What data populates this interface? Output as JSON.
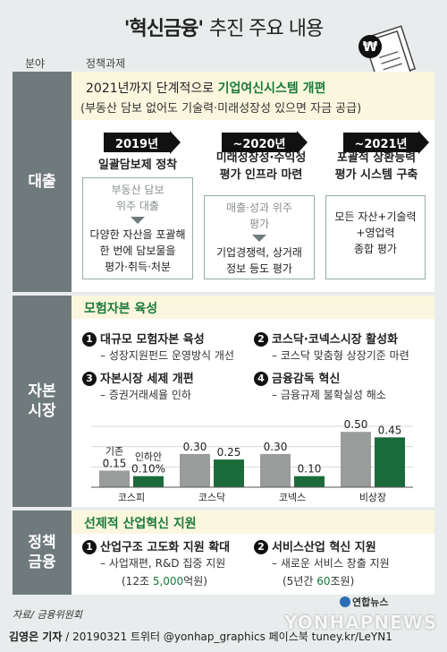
{
  "title": {
    "quoted": "'혁신금융'",
    "rest": "추진 주요 내용"
  },
  "columns": {
    "area": "분야",
    "task": "정책과제"
  },
  "section1": {
    "label": "대출",
    "line1_pre": "2021년까지 단계적으로 ",
    "line1_hl": "기업여신시스템 개편",
    "line2": "(부동산 담보 없어도 기술력·미래성장성 있으면 자금 공급)",
    "stages": [
      {
        "year": "2019년",
        "title": [
          "일괄담보제 정착"
        ],
        "before": [
          "부동산 담보",
          "위주 대출"
        ],
        "after": [
          "다양한 자산을 포괄해",
          "한 번에 담보물을",
          "평가·취득·처분"
        ]
      },
      {
        "year": "~2020년",
        "title": [
          "미래성장성·수익성",
          "평가 인프라 마련"
        ],
        "before": [
          "매출·성과 위주",
          "평가"
        ],
        "after": [
          "기업경쟁력, 상거래",
          "정보 등도 평가"
        ]
      },
      {
        "year": "~2021년",
        "title": [
          "포괄적 상환능력",
          "평가 시스템 구축"
        ],
        "before": [],
        "after": [
          "모든 자산+기술력",
          "+영업력",
          "종합 평가"
        ]
      }
    ]
  },
  "section2": {
    "label": [
      "자본",
      "시장"
    ],
    "heading": "모험자본 육성",
    "items": [
      {
        "num": "1",
        "title": "대규모 모험자본 육성",
        "sub": "– 성장지원펀드 운영방식 개선"
      },
      {
        "num": "2",
        "title": "코스닥·코넥스시장 활성화",
        "sub": "– 코스닥 맞춤형 상장기준 마련"
      },
      {
        "num": "3",
        "title": "자본시장 세제 개편",
        "sub": "– 증권거래세율 인하"
      },
      {
        "num": "4",
        "title": "금융감독 혁신",
        "sub": "– 금융규제 불확실성 해소"
      }
    ]
  },
  "chart_data": {
    "type": "bar",
    "categories": [
      "코스피",
      "코스닥",
      "코넥스",
      "비상장"
    ],
    "series": [
      {
        "name": "기존",
        "values": [
          0.15,
          0.3,
          0.3,
          0.5
        ],
        "labels": [
          "0.15",
          "0.30",
          "0.30",
          "0.50"
        ],
        "color": "#9a9c9c"
      },
      {
        "name": "인하안",
        "values": [
          0.1,
          0.25,
          0.1,
          0.45
        ],
        "labels": [
          "0.10%",
          "0.25",
          "0.10",
          "0.45"
        ],
        "color": "#1b6b3a"
      }
    ],
    "ylim": [
      0,
      0.55
    ]
  },
  "section3": {
    "label": [
      "정책",
      "금융"
    ],
    "heading": "선제적 산업혁신 지원",
    "items": [
      {
        "num": "1",
        "title": "산업구조 고도화 지원 확대",
        "sub": "– 사업재편, R&D 집중 지원",
        "note_pre": "(12조 ",
        "note_hl": "5,000",
        "note_post": "억원)"
      },
      {
        "num": "2",
        "title": "서비스산업 혁신 지원",
        "sub": "– 새로운 서비스 창출 지원",
        "note_pre": "(5년간 ",
        "note_hl": "60",
        "note_post": "조원)"
      }
    ]
  },
  "footer": {
    "source": "자료/ 금융위원회",
    "author": "김영은 기자",
    "rest": " / 20190321  트위터 @yonhap_graphics  페이스북 tuney.kr/LeYN1",
    "brand": "연합뉴스",
    "watermark": "YONHAPNEWS"
  },
  "colors": {
    "accent_green": "#1a7a3a",
    "label_gray": "#6f7a7c",
    "band_yellow": "#fbf7df"
  }
}
